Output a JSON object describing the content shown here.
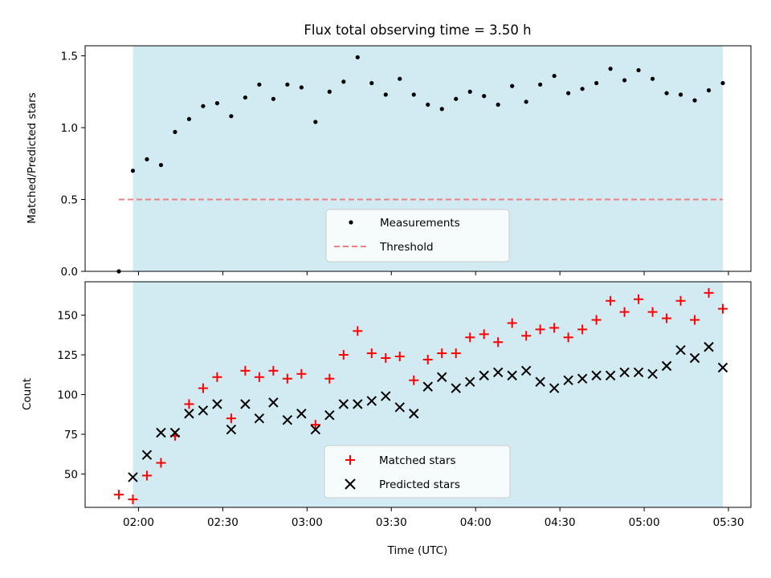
{
  "title": "Flux total observing time = 3.50 h",
  "x_axis_label": "Time (UTC)",
  "x_ticks": [
    "02:00",
    "02:30",
    "03:00",
    "03:30",
    "04:00",
    "04:30",
    "05:00",
    "05:30"
  ],
  "colors": {
    "band": "#add8e6",
    "measurement": "#000000",
    "threshold": "#f08080",
    "matched": "#ff0000",
    "predicted": "#000000"
  },
  "chart_data": [
    {
      "type": "scatter",
      "ylabel": "Matched/Predicted stars",
      "ylim": [
        0,
        1.57
      ],
      "yticks": [
        "0.0",
        "0.5",
        "1.0",
        "1.5"
      ],
      "shaded_x_range": [
        "01:58",
        "05:28"
      ],
      "x": [
        "01:53",
        "01:58",
        "02:03",
        "02:08",
        "02:13",
        "02:18",
        "02:23",
        "02:28",
        "02:33",
        "02:38",
        "02:43",
        "02:48",
        "02:53",
        "02:58",
        "03:03",
        "03:08",
        "03:13",
        "03:18",
        "03:23",
        "03:28",
        "03:33",
        "03:38",
        "03:43",
        "03:48",
        "03:53",
        "03:58",
        "04:03",
        "04:08",
        "04:13",
        "04:18",
        "04:23",
        "04:28",
        "04:33",
        "04:38",
        "04:43",
        "04:48",
        "04:53",
        "04:58",
        "05:03",
        "05:08",
        "05:13",
        "05:18",
        "05:23",
        "05:28"
      ],
      "series": [
        {
          "name": "Measurements",
          "values": [
            0.0,
            0.7,
            0.78,
            0.74,
            0.97,
            1.06,
            1.15,
            1.17,
            1.08,
            1.21,
            1.3,
            1.2,
            1.3,
            1.28,
            1.04,
            1.25,
            1.32,
            1.49,
            1.31,
            1.23,
            1.34,
            1.23,
            1.16,
            1.13,
            1.2,
            1.25,
            1.22,
            1.16,
            1.29,
            1.18,
            1.3,
            1.36,
            1.24,
            1.27,
            1.31,
            1.41,
            1.33,
            1.4,
            1.34,
            1.24,
            1.23,
            1.19,
            1.26,
            1.31
          ]
        },
        {
          "name": "Threshold",
          "type": "line",
          "x": [
            "01:53",
            "05:28"
          ],
          "values": [
            0.5,
            0.5
          ]
        }
      ],
      "legend": "lower center"
    },
    {
      "type": "scatter",
      "ylabel": "Count",
      "ylim": [
        29,
        171
      ],
      "yticks": [
        "50",
        "75",
        "100",
        "125",
        "150"
      ],
      "shaded_x_range": [
        "01:58",
        "05:28"
      ],
      "x": [
        "01:53",
        "01:58",
        "02:03",
        "02:08",
        "02:13",
        "02:18",
        "02:23",
        "02:28",
        "02:33",
        "02:38",
        "02:43",
        "02:48",
        "02:53",
        "02:58",
        "03:03",
        "03:08",
        "03:13",
        "03:18",
        "03:23",
        "03:28",
        "03:33",
        "03:38",
        "03:43",
        "03:48",
        "03:53",
        "03:58",
        "04:03",
        "04:08",
        "04:13",
        "04:18",
        "04:23",
        "04:28",
        "04:33",
        "04:38",
        "04:43",
        "04:48",
        "04:53",
        "04:58",
        "05:03",
        "05:08",
        "05:13",
        "05:18",
        "05:23",
        "05:28"
      ],
      "series": [
        {
          "name": "Matched stars",
          "values": [
            37,
            34,
            49,
            57,
            74,
            94,
            104,
            111,
            85,
            115,
            111,
            115,
            110,
            113,
            81,
            110,
            125,
            140,
            126,
            123,
            124,
            109,
            122,
            126,
            126,
            136,
            138,
            133,
            145,
            137,
            141,
            142,
            136,
            141,
            147,
            159,
            152,
            160,
            152,
            148,
            159,
            147,
            164,
            154
          ]
        },
        {
          "name": "Predicted stars",
          "values": [
            null,
            48,
            62,
            76,
            76,
            88,
            90,
            94,
            78,
            94,
            85,
            95,
            84,
            88,
            78,
            87,
            94,
            94,
            96,
            99,
            92,
            88,
            105,
            111,
            104,
            108,
            112,
            114,
            112,
            115,
            108,
            104,
            109,
            110,
            112,
            112,
            114,
            114,
            113,
            118,
            128,
            123,
            130,
            117
          ]
        }
      ],
      "legend": "lower center"
    }
  ]
}
